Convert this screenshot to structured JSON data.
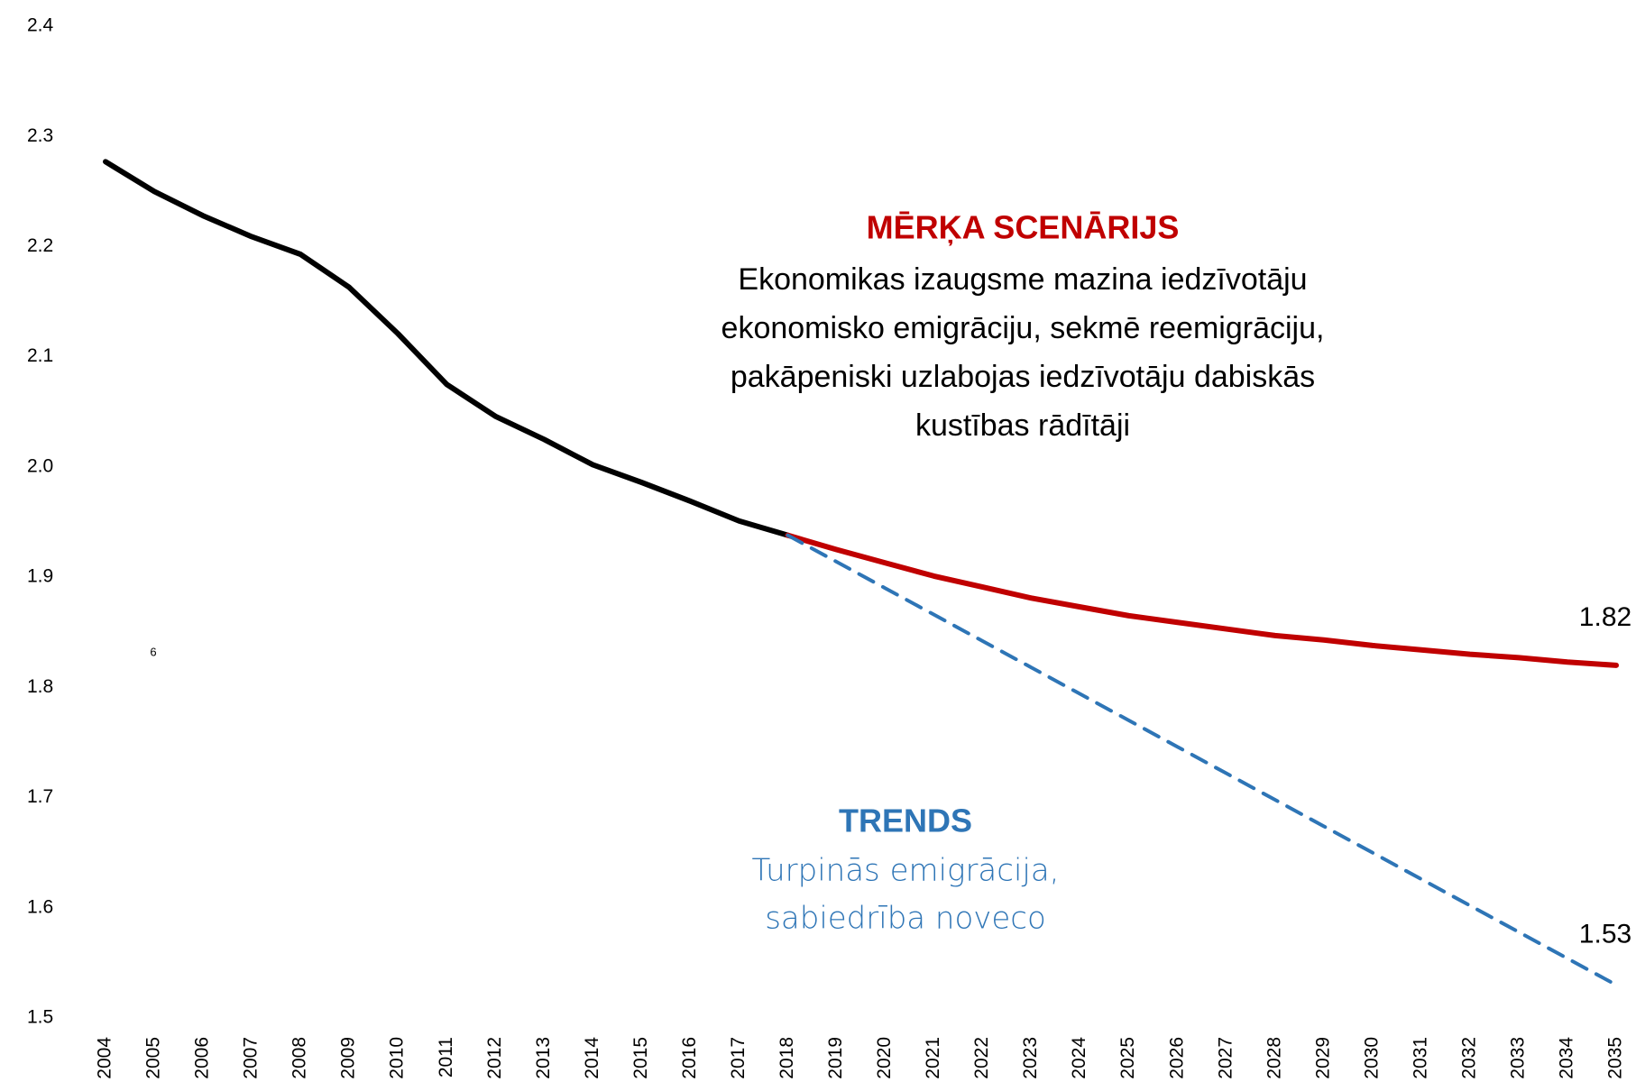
{
  "chart_data": {
    "type": "line",
    "categories": [
      "2004",
      "2005",
      "2006",
      "2007",
      "2008",
      "2009",
      "2010",
      "2011",
      "2012",
      "2013",
      "2014",
      "2015",
      "2016",
      "2017",
      "2018",
      "2019",
      "2020",
      "2021",
      "2022",
      "2023",
      "2024",
      "2025",
      "2026",
      "2027",
      "2028",
      "2029",
      "2030",
      "2031",
      "2032",
      "2033",
      "2034",
      "2035"
    ],
    "series": [
      {
        "color": "#000000",
        "dash": false,
        "values": [
          2.277,
          2.25,
          2.228,
          2.209,
          2.193,
          2.163,
          2.121,
          2.075,
          2.046,
          2.025,
          2.002,
          1.986,
          1.969,
          1.951,
          1.938,
          null,
          null,
          null,
          null,
          null,
          null,
          null,
          null,
          null,
          null,
          null,
          null,
          null,
          null,
          null,
          null,
          null
        ]
      },
      {
        "color": "#c00000",
        "dash": false,
        "values": [
          null,
          null,
          null,
          null,
          null,
          null,
          null,
          null,
          null,
          null,
          null,
          null,
          null,
          null,
          1.938,
          1.925,
          1.913,
          1.901,
          1.891,
          1.881,
          1.873,
          1.865,
          1.859,
          1.853,
          1.847,
          1.843,
          1.838,
          1.834,
          1.83,
          1.827,
          1.823,
          1.82
        ]
      },
      {
        "color": "#2e75b6",
        "dash": true,
        "values": [
          null,
          null,
          null,
          null,
          null,
          null,
          null,
          null,
          null,
          null,
          null,
          null,
          null,
          null,
          1.938,
          1.914,
          1.89,
          1.866,
          1.842,
          1.818,
          1.794,
          1.77,
          1.746,
          1.722,
          1.698,
          1.674,
          1.65,
          1.626,
          1.602,
          1.578,
          1.554,
          1.53
        ]
      }
    ],
    "ylim": [
      1.5,
      2.4
    ],
    "yticks": [
      1.5,
      1.6,
      1.7,
      1.8,
      1.9,
      {
        "value": 2.0,
        "label": "2.0"
      },
      2.1,
      2.2,
      2.3,
      2.4
    ],
    "grid": false,
    "annotations": {
      "target_title": "MĒRĶA SCENĀRIJS",
      "target_text": [
        "Ekonomikas izaugsme mazina iedzīvotāju",
        "ekonomisko emigrāciju, sekmē reemigrāciju,",
        "pakāpeniski uzlabojas iedzīvotāju dabiskās",
        "kustības rādītāji"
      ],
      "trend_title": "TRENDS",
      "trend_text": [
        "Turpinās emigrācija,",
        "sabiedrība noveco"
      ],
      "stray": "6"
    }
  }
}
